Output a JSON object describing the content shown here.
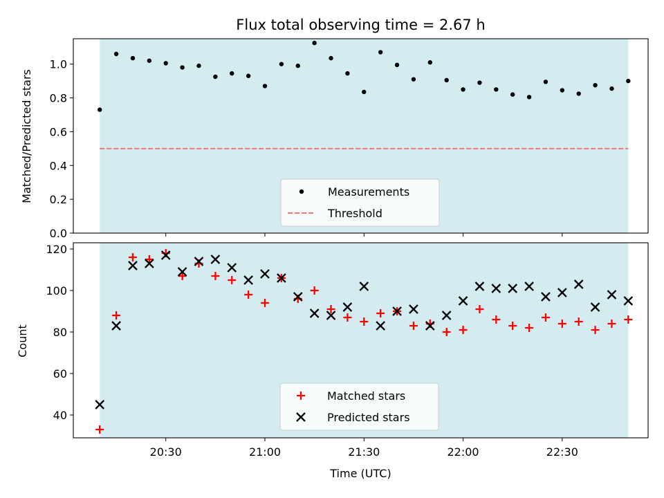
{
  "chart_data": [
    {
      "type": "scatter",
      "title": "Flux total observing time = 2.67 h",
      "xlabel": "",
      "ylabel": "Matched/Predicted stars",
      "ylim": [
        0,
        1.15
      ],
      "yticks": [
        "0.0",
        "0.2",
        "0.4",
        "0.6",
        "0.8",
        "1.0"
      ],
      "shaded_x_range": [
        "20:10",
        "22:50"
      ],
      "legend_position": "lower-center",
      "series": [
        {
          "name": "Measurements",
          "marker": "dot",
          "color": "#000000",
          "x": [
            "20:10",
            "20:15",
            "20:20",
            "20:25",
            "20:30",
            "20:35",
            "20:40",
            "20:45",
            "20:50",
            "20:55",
            "21:00",
            "21:05",
            "21:10",
            "21:15",
            "21:20",
            "21:25",
            "21:30",
            "21:35",
            "21:40",
            "21:45",
            "21:50",
            "21:55",
            "22:00",
            "22:05",
            "22:10",
            "22:15",
            "22:20",
            "22:25",
            "22:30",
            "22:35",
            "22:40",
            "22:45",
            "22:50"
          ],
          "y": [
            0.73,
            1.06,
            1.035,
            1.02,
            1.005,
            0.98,
            0.99,
            0.925,
            0.945,
            0.93,
            0.87,
            1.0,
            0.99,
            1.125,
            1.035,
            0.945,
            0.835,
            1.07,
            0.995,
            0.91,
            1.01,
            0.905,
            0.85,
            0.89,
            0.85,
            0.82,
            0.805,
            0.895,
            0.845,
            0.825,
            0.875,
            0.855,
            0.9
          ]
        },
        {
          "name": "Threshold",
          "marker": "dashed-line",
          "color": "#f07777",
          "y_constant": 0.5
        }
      ]
    },
    {
      "type": "scatter",
      "title": "",
      "xlabel": "Time (UTC)",
      "ylabel": "Count",
      "ylim": [
        29,
        123
      ],
      "yticks": [
        "40",
        "60",
        "80",
        "100",
        "120"
      ],
      "xticks": [
        "20:30",
        "21:00",
        "21:30",
        "22:00",
        "22:30"
      ],
      "legend_position": "lower-center",
      "series": [
        {
          "name": "Matched stars",
          "marker": "plus",
          "color": "#ff0000",
          "x": [
            "20:10",
            "20:15",
            "20:20",
            "20:25",
            "20:30",
            "20:35",
            "20:40",
            "20:45",
            "20:50",
            "20:55",
            "21:00",
            "21:05",
            "21:10",
            "21:15",
            "21:20",
            "21:25",
            "21:30",
            "21:35",
            "21:40",
            "21:45",
            "21:50",
            "21:55",
            "22:00",
            "22:05",
            "22:10",
            "22:15",
            "22:20",
            "22:25",
            "22:30",
            "22:35",
            "22:40",
            "22:45",
            "22:50"
          ],
          "y": [
            33,
            88,
            116,
            115,
            118,
            107,
            113,
            107,
            105,
            98,
            94,
            106,
            96,
            100,
            91,
            87,
            85,
            89,
            90,
            83,
            84,
            80,
            81,
            91,
            86,
            83,
            82,
            87,
            84,
            85,
            81,
            84,
            86
          ]
        },
        {
          "name": "Predicted stars",
          "marker": "x",
          "color": "#000000",
          "x": [
            "20:10",
            "20:15",
            "20:20",
            "20:25",
            "20:30",
            "20:35",
            "20:40",
            "20:45",
            "20:50",
            "20:55",
            "21:00",
            "21:05",
            "21:10",
            "21:15",
            "21:20",
            "21:25",
            "21:30",
            "21:35",
            "21:40",
            "21:45",
            "21:50",
            "21:55",
            "22:00",
            "22:05",
            "22:10",
            "22:15",
            "22:20",
            "22:25",
            "22:30",
            "22:35",
            "22:40",
            "22:45",
            "22:50"
          ],
          "y": [
            45,
            83,
            112,
            113,
            117,
            109,
            114,
            115,
            111,
            105,
            108,
            106,
            97,
            89,
            88,
            92,
            102,
            83,
            90,
            91,
            83,
            88,
            95,
            102,
            101,
            101,
            102,
            97,
            99,
            103,
            92,
            98,
            95
          ]
        }
      ]
    }
  ],
  "colors": {
    "shade": "#d4ebf0",
    "threshold": "#f07777",
    "matched": "#ff0000",
    "predicted": "#000000",
    "points": "#000000"
  }
}
